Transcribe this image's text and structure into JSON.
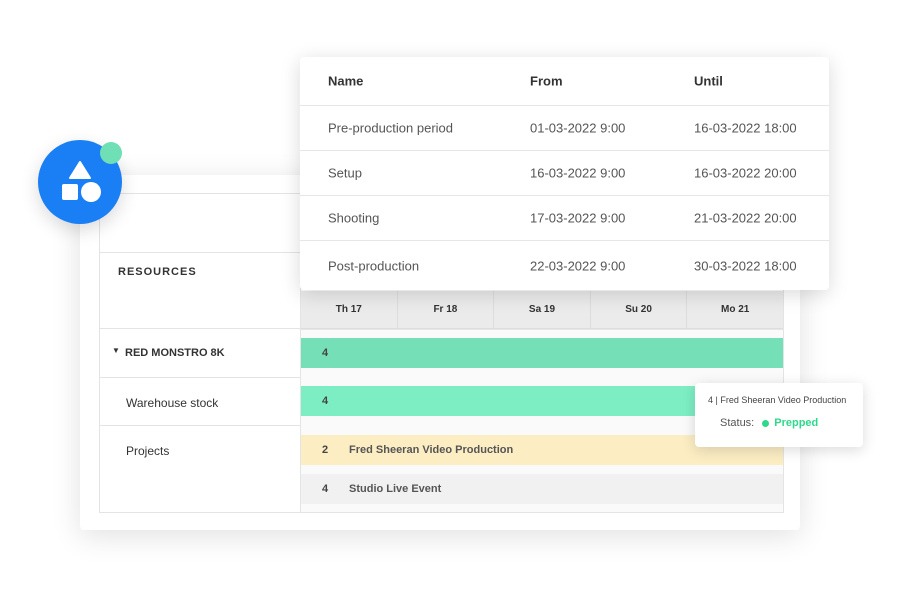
{
  "popup": {
    "headers": [
      "Name",
      "From",
      "Until"
    ],
    "rows": [
      {
        "name": "Pre-production period",
        "from": "01-03-2022  9:00",
        "until": "16-03-2022  18:00"
      },
      {
        "name": "Setup",
        "from": "16-03-2022  9:00",
        "until": "16-03-2022  20:00"
      },
      {
        "name": "Shooting",
        "from": "17-03-2022  9:00",
        "until": "21-03-2022  20:00"
      },
      {
        "name": "Post-production",
        "from": "22-03-2022  9:00",
        "until": "30-03-2022  18:00"
      }
    ]
  },
  "planner": {
    "resources_label": "RESOURCES",
    "days": [
      "Th 17",
      "Fr 18",
      "Sa 19",
      "Su 20",
      "Mo 21"
    ],
    "rows": [
      {
        "label": "RED MONSTRO 8K",
        "count": "4",
        "color": "#75e0b8"
      },
      {
        "label": "Warehouse stock",
        "count": "4",
        "color": "#7deec4"
      },
      {
        "label": "Projects"
      }
    ],
    "projects": [
      {
        "count": "2",
        "name": "Fred Sheeran Video Production",
        "color": "#fcedc3"
      },
      {
        "count": "4",
        "name": "Studio Live Event",
        "color": "#f3f3f3"
      }
    ]
  },
  "tooltip": {
    "title": "4 | Fred Sheeran  Video Production",
    "status_label": "Status:",
    "status": "Prepped",
    "status_color": "#2ed98c"
  },
  "logo": {
    "icon": "shapes-icon",
    "color": "#1a7ff5",
    "badge_color": "#6fe0b5"
  }
}
